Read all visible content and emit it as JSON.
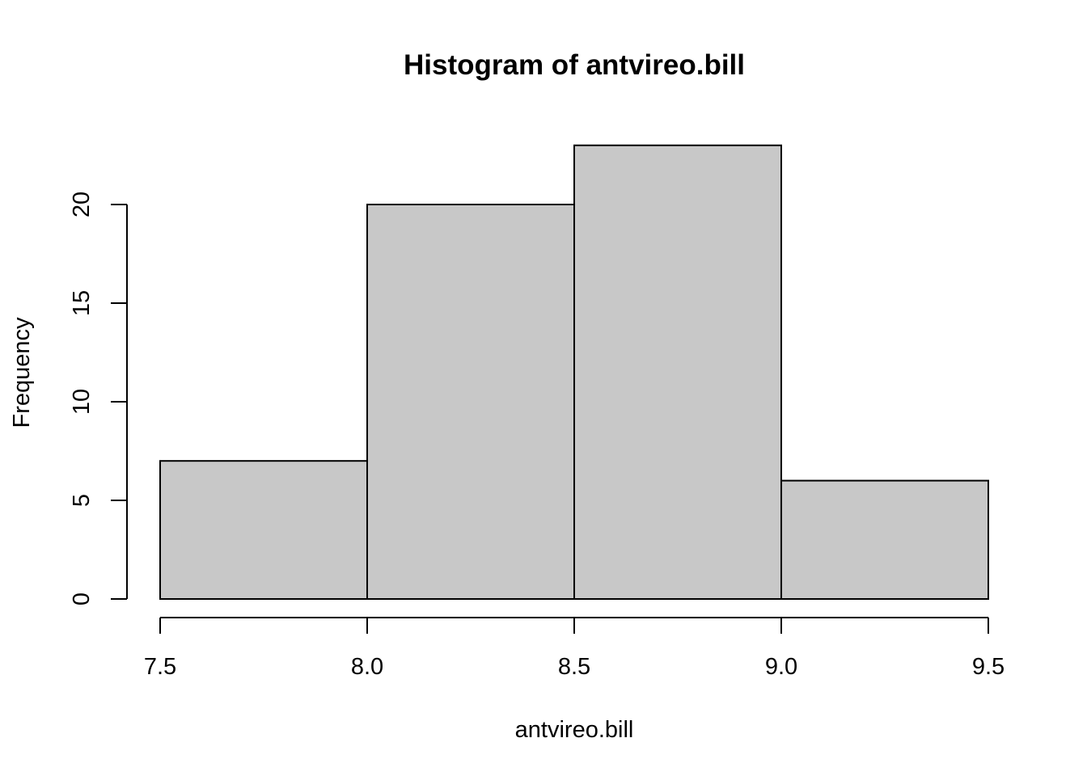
{
  "chart_data": {
    "type": "bar",
    "title": "Histogram of antvireo.bill",
    "xlabel": "antvireo.bill",
    "ylabel": "Frequency",
    "bins": [
      {
        "start": 7.5,
        "end": 8.0,
        "count": 7
      },
      {
        "start": 8.0,
        "end": 8.5,
        "count": 20
      },
      {
        "start": 8.5,
        "end": 9.0,
        "count": 23
      },
      {
        "start": 9.0,
        "end": 9.5,
        "count": 6
      }
    ],
    "x_ticks": [
      "7.5",
      "8.0",
      "8.5",
      "9.0",
      "9.5"
    ],
    "y_ticks": [
      "0",
      "5",
      "10",
      "15",
      "20"
    ],
    "xlim": [
      7.5,
      9.5
    ],
    "ylim": [
      0,
      23
    ],
    "grid": false,
    "colors": {
      "bar_fill": "#c8c8c8",
      "bar_stroke": "#000000"
    }
  }
}
